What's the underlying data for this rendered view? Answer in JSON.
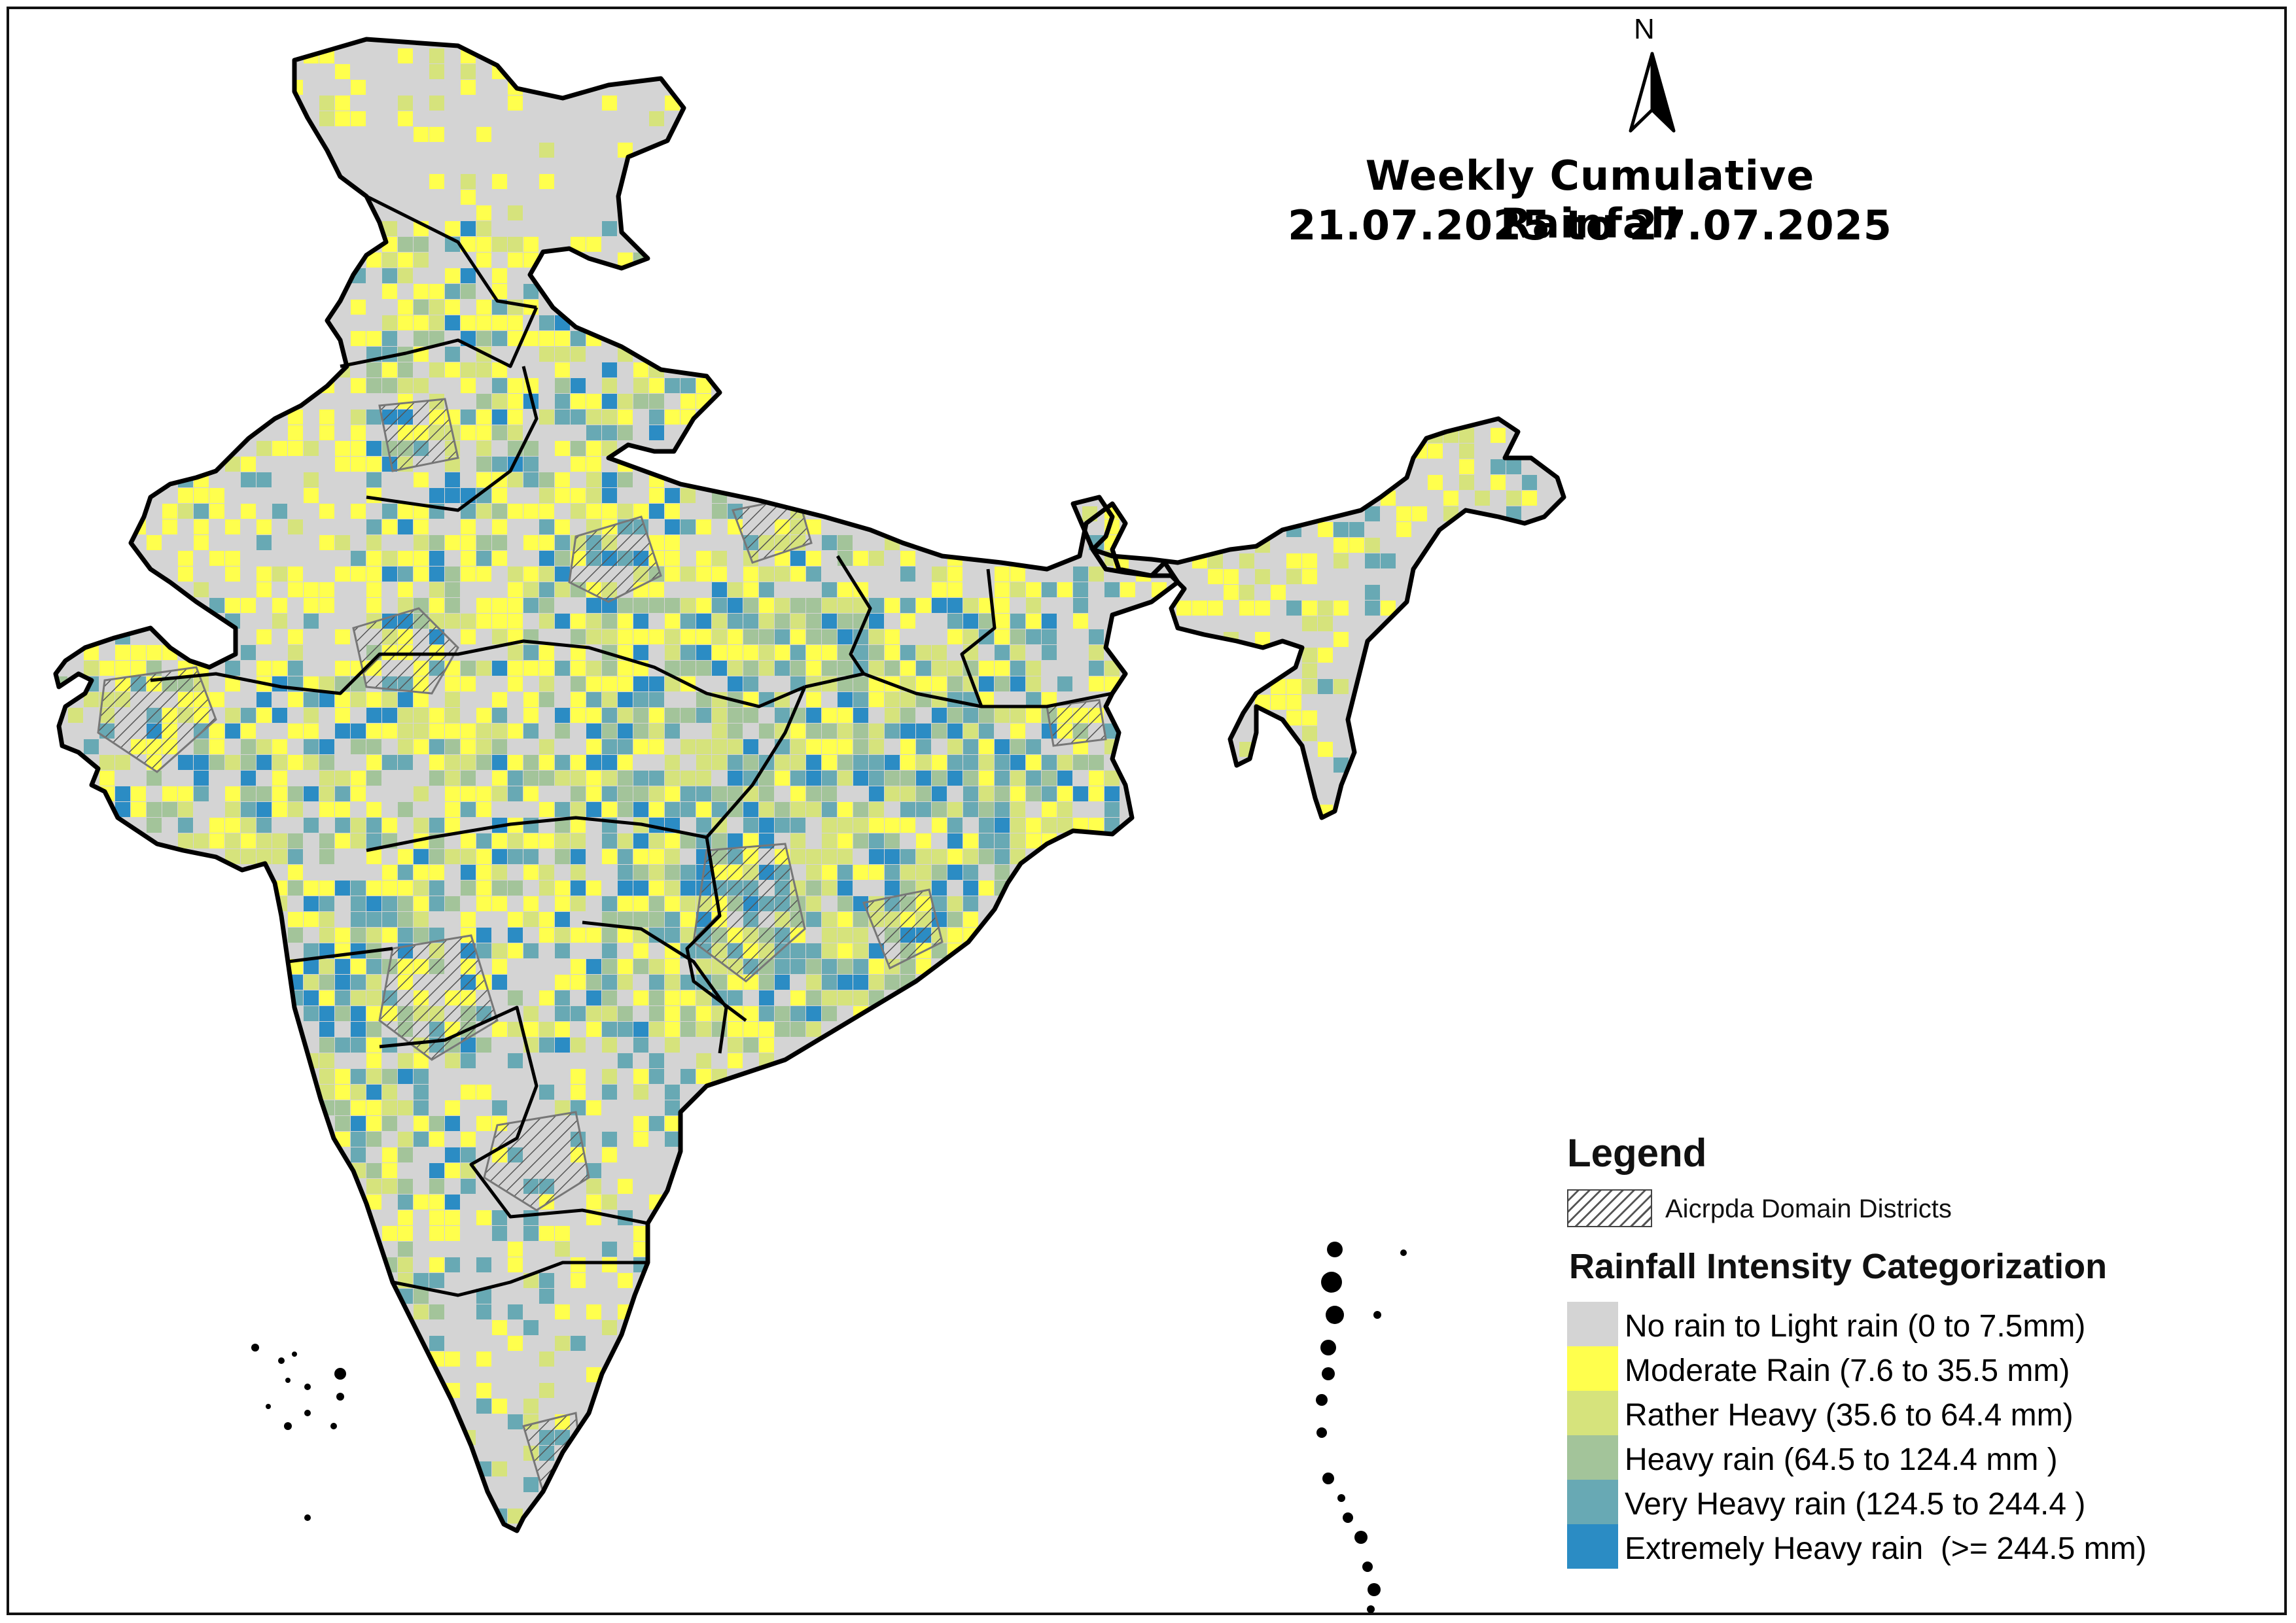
{
  "title": {
    "line1": "Weekly Cumulative Rainfall",
    "line2": "21.07.2025 to 27.07.2025"
  },
  "north_arrow": {
    "label": "N",
    "icon": "north-arrow-icon"
  },
  "legend": {
    "heading": "Legend",
    "hatch_label": "Aicrpda Domain Districts",
    "category_heading": "Rainfall Intensity Categorization",
    "categories": [
      {
        "label": "No rain to Light rain (0 to 7.5mm)",
        "color": "#d4d4d4"
      },
      {
        "label": "Moderate Rain (7.6 to 35.5 mm)",
        "color": "#ffff4d"
      },
      {
        "label": "Rather Heavy (35.6 to 64.4 mm)",
        "color": "#d6e37c"
      },
      {
        "label": "Heavy rain (64.5 to 124.4 mm )",
        "color": "#a3c49a"
      },
      {
        "label": "Very Heavy rain (124.5 to 244.4 )",
        "color": "#68a9b4"
      },
      {
        "label": "Extremely Heavy rain  (>= 244.5 mm)",
        "color": "#2b8cc4"
      }
    ]
  }
}
